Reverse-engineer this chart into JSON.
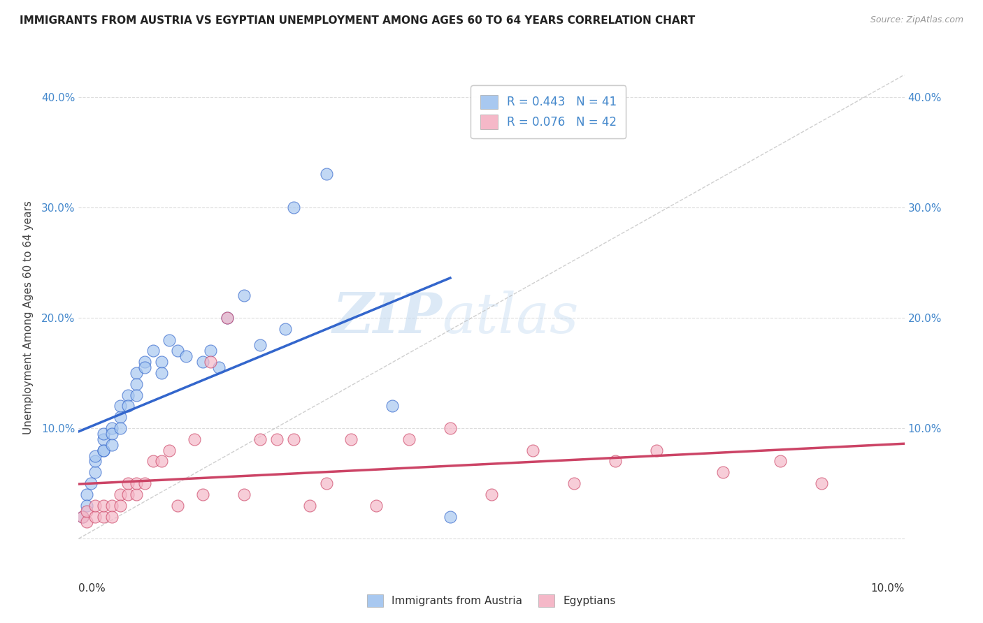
{
  "title": "IMMIGRANTS FROM AUSTRIA VS EGYPTIAN UNEMPLOYMENT AMONG AGES 60 TO 64 YEARS CORRELATION CHART",
  "source": "Source: ZipAtlas.com",
  "ylabel": "Unemployment Among Ages 60 to 64 years",
  "xlim": [
    0.0,
    0.1
  ],
  "ylim": [
    -0.02,
    0.42
  ],
  "yticks": [
    0.0,
    0.1,
    0.2,
    0.3,
    0.4
  ],
  "ytick_labels": [
    "",
    "10.0%",
    "20.0%",
    "30.0%",
    "40.0%"
  ],
  "blue_color": "#A8C8F0",
  "pink_color": "#F5B8C8",
  "blue_line_color": "#3366CC",
  "pink_line_color": "#CC4466",
  "diagonal_color": "#BBBBBB",
  "legend_blue_label": "R = 0.443   N = 41",
  "legend_pink_label": "R = 0.076   N = 42",
  "footer_blue_label": "Immigrants from Austria",
  "footer_pink_label": "Egyptians",
  "blue_scatter_x": [
    0.0005,
    0.001,
    0.001,
    0.0015,
    0.002,
    0.002,
    0.002,
    0.003,
    0.003,
    0.003,
    0.003,
    0.004,
    0.004,
    0.004,
    0.005,
    0.005,
    0.005,
    0.006,
    0.006,
    0.007,
    0.007,
    0.007,
    0.008,
    0.008,
    0.009,
    0.01,
    0.01,
    0.011,
    0.012,
    0.013,
    0.015,
    0.016,
    0.017,
    0.018,
    0.02,
    0.022,
    0.025,
    0.026,
    0.03,
    0.038,
    0.045
  ],
  "blue_scatter_y": [
    0.02,
    0.04,
    0.03,
    0.05,
    0.06,
    0.07,
    0.075,
    0.08,
    0.09,
    0.095,
    0.08,
    0.1,
    0.095,
    0.085,
    0.11,
    0.12,
    0.1,
    0.13,
    0.12,
    0.15,
    0.14,
    0.13,
    0.16,
    0.155,
    0.17,
    0.16,
    0.15,
    0.18,
    0.17,
    0.165,
    0.16,
    0.17,
    0.155,
    0.2,
    0.22,
    0.175,
    0.19,
    0.3,
    0.33,
    0.12,
    0.02
  ],
  "pink_scatter_x": [
    0.0005,
    0.001,
    0.001,
    0.002,
    0.002,
    0.003,
    0.003,
    0.004,
    0.004,
    0.005,
    0.005,
    0.006,
    0.006,
    0.007,
    0.007,
    0.008,
    0.009,
    0.01,
    0.011,
    0.012,
    0.014,
    0.015,
    0.016,
    0.018,
    0.02,
    0.022,
    0.024,
    0.026,
    0.028,
    0.03,
    0.033,
    0.036,
    0.04,
    0.045,
    0.05,
    0.055,
    0.06,
    0.065,
    0.07,
    0.078,
    0.085,
    0.09
  ],
  "pink_scatter_y": [
    0.02,
    0.015,
    0.025,
    0.02,
    0.03,
    0.02,
    0.03,
    0.03,
    0.02,
    0.04,
    0.03,
    0.04,
    0.05,
    0.04,
    0.05,
    0.05,
    0.07,
    0.07,
    0.08,
    0.03,
    0.09,
    0.04,
    0.16,
    0.2,
    0.04,
    0.09,
    0.09,
    0.09,
    0.03,
    0.05,
    0.09,
    0.03,
    0.09,
    0.1,
    0.04,
    0.08,
    0.05,
    0.07,
    0.08,
    0.06,
    0.07,
    0.05
  ],
  "watermark_zip": "ZIP",
  "watermark_atlas": "atlas",
  "background_color": "#FFFFFF",
  "grid_color": "#DDDDDD"
}
